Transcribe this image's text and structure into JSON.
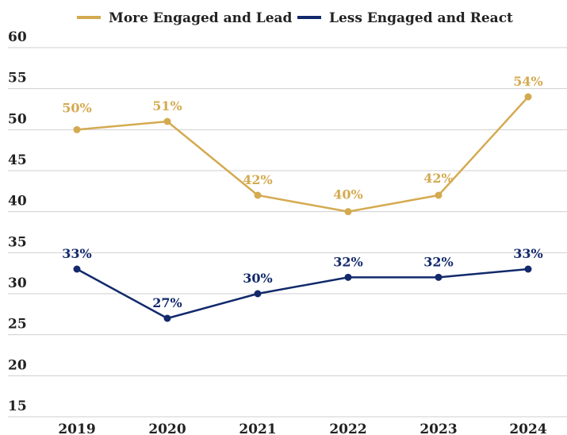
{
  "chart_data": {
    "type": "line",
    "title": "",
    "xlabel": "",
    "ylabel": "",
    "categories": [
      "2019",
      "2020",
      "2021",
      "2022",
      "2023",
      "2024"
    ],
    "ylim": [
      15,
      60
    ],
    "yticks": [
      "15",
      "20",
      "25",
      "30",
      "35",
      "40",
      "45",
      "50",
      "55",
      "60"
    ],
    "grid": true,
    "legend_position": "top-center",
    "series": [
      {
        "name": "More Engaged and Lead",
        "color": "#d4aa50",
        "values": [
          50,
          51,
          42,
          40,
          42,
          54
        ],
        "labels": [
          "50%",
          "51%",
          "42%",
          "40%",
          "42%",
          "54%"
        ]
      },
      {
        "name": "Less Engaged and React",
        "color": "#12296b",
        "values": [
          33,
          27,
          30,
          32,
          32,
          33
        ],
        "labels": [
          "33%",
          "27%",
          "30%",
          "32%",
          "32%",
          "33%"
        ]
      }
    ]
  }
}
